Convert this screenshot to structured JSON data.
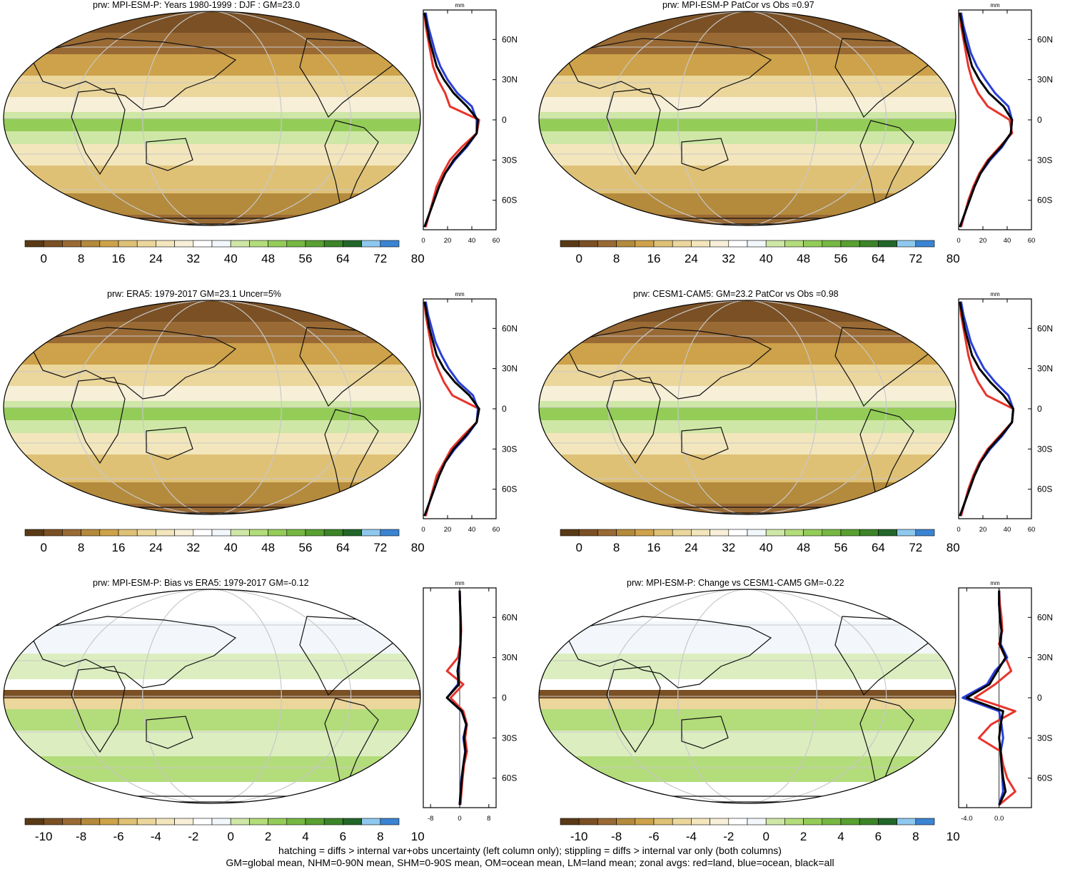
{
  "colors": {
    "land": "#e8342c",
    "ocean": "#2a3fd8",
    "all": "#000000",
    "gridline": "#c8c8c8"
  },
  "abs_palette": [
    "#5a3a16",
    "#7a5024",
    "#9a6a34",
    "#b48a3c",
    "#cda24a",
    "#dfc176",
    "#ebd69c",
    "#f3e6bc",
    "#f7efd8",
    "#ffffff",
    "#f2f7fb",
    "#cfe7a6",
    "#b3dc7a",
    "#94cc58",
    "#76b842",
    "#58a030",
    "#3c8428",
    "#22662a",
    "#8fc8ee",
    "#3a84d2"
  ],
  "diff_palette": [
    "#5a3a16",
    "#7a5024",
    "#9a6a34",
    "#b48a3c",
    "#cda24a",
    "#dfc176",
    "#ebd69c",
    "#f3e6bc",
    "#f7efd8",
    "#ffffff",
    "#f2f7fb",
    "#cfe7a6",
    "#b3dc7a",
    "#94cc58",
    "#76b842",
    "#58a030",
    "#3c8428",
    "#22662a",
    "#8fc8ee",
    "#3a84d2"
  ],
  "chart_data": [
    {
      "type": "heatmap",
      "title": "prw: MPI-ESM-P: Years 1980-1999 : DJF : GM=23.0",
      "kind": "abs",
      "colorbar_labels": [
        "0",
        "8",
        "16",
        "24",
        "32",
        "40",
        "48",
        "56",
        "64",
        "72",
        "80"
      ],
      "profile": {
        "unit_label": "mm",
        "xlim": [
          0,
          60
        ],
        "xticks": [
          "0",
          "20",
          "40",
          "60"
        ],
        "lat_ticks": [
          "60N",
          "30N",
          "0",
          "30S",
          "60S"
        ],
        "lat": [
          -80,
          -70,
          -60,
          -50,
          -40,
          -30,
          -20,
          -10,
          0,
          10,
          20,
          30,
          40,
          50,
          60,
          70,
          80
        ],
        "series": [
          {
            "name": "land",
            "values": [
              2,
              5,
              8,
              11,
              16,
              22,
              32,
              44,
              46,
              22,
              18,
              12,
              8,
              6,
              4,
              2,
              1
            ]
          },
          {
            "name": "ocean",
            "values": [
              1,
              5,
              9,
              13,
              18,
              26,
              36,
              44,
              44,
              40,
              28,
              20,
              14,
              10,
              7,
              4,
              2
            ]
          },
          {
            "name": "all",
            "values": [
              1,
              5,
              9,
              13,
              18,
              25,
              35,
              44,
              45,
              36,
              25,
              17,
              11,
              8,
              5,
              3,
              1
            ]
          }
        ]
      }
    },
    {
      "type": "heatmap",
      "title": "prw: MPI-ESM-P PatCor vs Obs =0.97",
      "kind": "abs",
      "colorbar_labels": [
        "0",
        "8",
        "16",
        "24",
        "32",
        "40",
        "48",
        "56",
        "64",
        "72",
        "80"
      ],
      "profile": {
        "unit_label": "mm",
        "xlim": [
          0,
          60
        ],
        "xticks": [
          "0",
          "20",
          "40",
          "60"
        ],
        "lat_ticks": [
          "60N",
          "30N",
          "0",
          "30S",
          "60S"
        ],
        "lat": [
          -80,
          -70,
          -60,
          -50,
          -40,
          -30,
          -20,
          -10,
          0,
          10,
          20,
          30,
          40,
          50,
          60,
          70,
          80
        ],
        "series": [
          {
            "name": "land",
            "values": [
              2,
              5,
              8,
              12,
              17,
              24,
              34,
              44,
              42,
              24,
              16,
              11,
              8,
              6,
              4,
              2,
              1
            ]
          },
          {
            "name": "ocean",
            "values": [
              1,
              5,
              9,
              13,
              18,
              26,
              36,
              43,
              44,
              41,
              30,
              22,
              15,
              10,
              7,
              4,
              2
            ]
          },
          {
            "name": "all",
            "values": [
              1,
              5,
              9,
              13,
              18,
              25,
              35,
              43,
              44,
              37,
              25,
              17,
              11,
              8,
              5,
              3,
              1
            ]
          }
        ]
      }
    },
    {
      "type": "heatmap",
      "title": "prw: ERA5: 1979-2017 GM=23.1 Uncer=5%",
      "kind": "abs",
      "colorbar_labels": [
        "0",
        "8",
        "16",
        "24",
        "32",
        "40",
        "48",
        "56",
        "64",
        "72",
        "80"
      ],
      "profile": {
        "unit_label": "mm",
        "xlim": [
          0,
          60
        ],
        "xticks": [
          "0",
          "20",
          "40",
          "60"
        ],
        "lat_ticks": [
          "60N",
          "30N",
          "0",
          "30S",
          "60S"
        ],
        "lat": [
          -80,
          -70,
          -60,
          -50,
          -40,
          -30,
          -20,
          -10,
          0,
          10,
          20,
          30,
          40,
          50,
          60,
          70,
          80
        ],
        "series": [
          {
            "name": "land",
            "values": [
              2,
              5,
              8,
              11,
              17,
              23,
              33,
              44,
              46,
              24,
              17,
              12,
              8,
              6,
              4,
              2,
              1
            ]
          },
          {
            "name": "ocean",
            "values": [
              1,
              5,
              9,
              13,
              18,
              26,
              36,
              44,
              45,
              41,
              29,
              21,
              15,
              10,
              7,
              4,
              2
            ]
          },
          {
            "name": "all",
            "values": [
              1,
              5,
              9,
              13,
              18,
              25,
              35,
              44,
              46,
              38,
              26,
              17,
              11,
              8,
              5,
              3,
              1
            ]
          }
        ]
      }
    },
    {
      "type": "heatmap",
      "title": "prw: CESM1-CAM5: GM=23.2 PatCor vs Obs =0.98",
      "kind": "abs",
      "colorbar_labels": [
        "0",
        "8",
        "16",
        "24",
        "32",
        "40",
        "48",
        "56",
        "64",
        "72",
        "80"
      ],
      "profile": {
        "unit_label": "mm",
        "xlim": [
          0,
          60
        ],
        "xticks": [
          "0",
          "20",
          "40",
          "60"
        ],
        "lat_ticks": [
          "60N",
          "30N",
          "0",
          "30S",
          "60S"
        ],
        "lat": [
          -80,
          -70,
          -60,
          -50,
          -40,
          -30,
          -20,
          -10,
          0,
          10,
          20,
          30,
          40,
          50,
          60,
          70,
          80
        ],
        "series": [
          {
            "name": "land",
            "values": [
              2,
              5,
              8,
              12,
              17,
              24,
              34,
              44,
              45,
              23,
              16,
              11,
              8,
              6,
              4,
              2,
              1
            ]
          },
          {
            "name": "ocean",
            "values": [
              1,
              5,
              9,
              13,
              18,
              26,
              36,
              44,
              45,
              41,
              30,
              21,
              15,
              10,
              7,
              4,
              2
            ]
          },
          {
            "name": "all",
            "values": [
              1,
              5,
              9,
              13,
              18,
              25,
              35,
              44,
              45,
              37,
              26,
              17,
              11,
              8,
              5,
              3,
              1
            ]
          }
        ]
      }
    },
    {
      "type": "heatmap",
      "title": "prw: MPI-ESM-P: Bias vs ERA5: 1979-2017 GM=-0.12",
      "kind": "diff",
      "colorbar_labels": [
        "-10",
        "-8",
        "-6",
        "-4",
        "-2",
        "0",
        "2",
        "4",
        "6",
        "8",
        "10"
      ],
      "profile": {
        "unit_label": "mm",
        "xlim": [
          -10,
          10
        ],
        "xticks": [
          "-8",
          "0",
          "8"
        ],
        "lat_ticks": [
          "60N",
          "30N",
          "0",
          "30S",
          "60S"
        ],
        "lat": [
          -80,
          -70,
          -60,
          -50,
          -40,
          -30,
          -20,
          -10,
          0,
          10,
          20,
          30,
          40,
          50,
          60,
          70,
          80
        ],
        "series": [
          {
            "name": "land",
            "values": [
              0.2,
              0.5,
              0.8,
              1.2,
              2.0,
              1.5,
              2.0,
              1.0,
              -2.5,
              1.0,
              -3.5,
              -0.5,
              0.2,
              0.4,
              0.3,
              0.1,
              0.0
            ]
          },
          {
            "name": "ocean",
            "values": [
              0.0,
              0.2,
              0.5,
              1.0,
              1.5,
              1.0,
              1.8,
              0.5,
              -3.5,
              -0.5,
              -0.3,
              0.0,
              0.2,
              0.3,
              0.2,
              0.1,
              0.0
            ]
          },
          {
            "name": "all",
            "values": [
              0.0,
              0.3,
              0.6,
              1.0,
              1.6,
              1.2,
              1.8,
              0.6,
              -3.5,
              -0.2,
              -0.6,
              0.0,
              0.2,
              0.3,
              0.2,
              0.1,
              0.0
            ]
          }
        ]
      }
    },
    {
      "type": "heatmap",
      "title": "prw: MPI-ESM-P: Change vs CESM1-CAM5 GM=-0.22",
      "kind": "diff",
      "colorbar_labels": [
        "-10",
        "-8",
        "-6",
        "-4",
        "-2",
        "0",
        "2",
        "4",
        "6",
        "8",
        "10"
      ],
      "profile": {
        "unit_label": "mm",
        "xlim": [
          -5,
          4
        ],
        "xticks": [
          "-4.0",
          "0.0"
        ],
        "lat_ticks": [
          "60N",
          "30N",
          "0",
          "30S",
          "60S"
        ],
        "lat": [
          -80,
          -70,
          -60,
          -50,
          -40,
          -30,
          -20,
          -10,
          0,
          10,
          20,
          30,
          40,
          50,
          60,
          70,
          80
        ],
        "series": [
          {
            "name": "land",
            "values": [
              0.0,
              2.0,
              1.0,
              0.5,
              0.2,
              -2.5,
              -1.0,
              2.0,
              -3.0,
              -0.5,
              1.5,
              0.8,
              0.0,
              0.4,
              0.3,
              0.1,
              0.0
            ]
          },
          {
            "name": "ocean",
            "values": [
              0.0,
              0.5,
              0.4,
              0.3,
              0.2,
              0.5,
              0.3,
              0.0,
              -4.5,
              -1.5,
              -0.5,
              1.0,
              0.2,
              0.3,
              0.1,
              0.0,
              0.0
            ]
          },
          {
            "name": "all",
            "values": [
              0.0,
              0.8,
              0.5,
              0.3,
              0.2,
              0.0,
              0.2,
              0.5,
              -4.0,
              -1.2,
              -0.2,
              0.8,
              0.1,
              0.3,
              0.1,
              0.0,
              0.0
            ]
          }
        ]
      }
    }
  ],
  "footer": {
    "line1": "hatching = diffs > internal var+obs uncertainty (left column only); stippling = diffs > internal var only (both columns)",
    "line2": "GM=global mean, NHM=0-90N mean, SHM=0-90S mean, OM=ocean mean, LM=land mean; zonal avgs: red=land, blue=ocean, black=all"
  }
}
